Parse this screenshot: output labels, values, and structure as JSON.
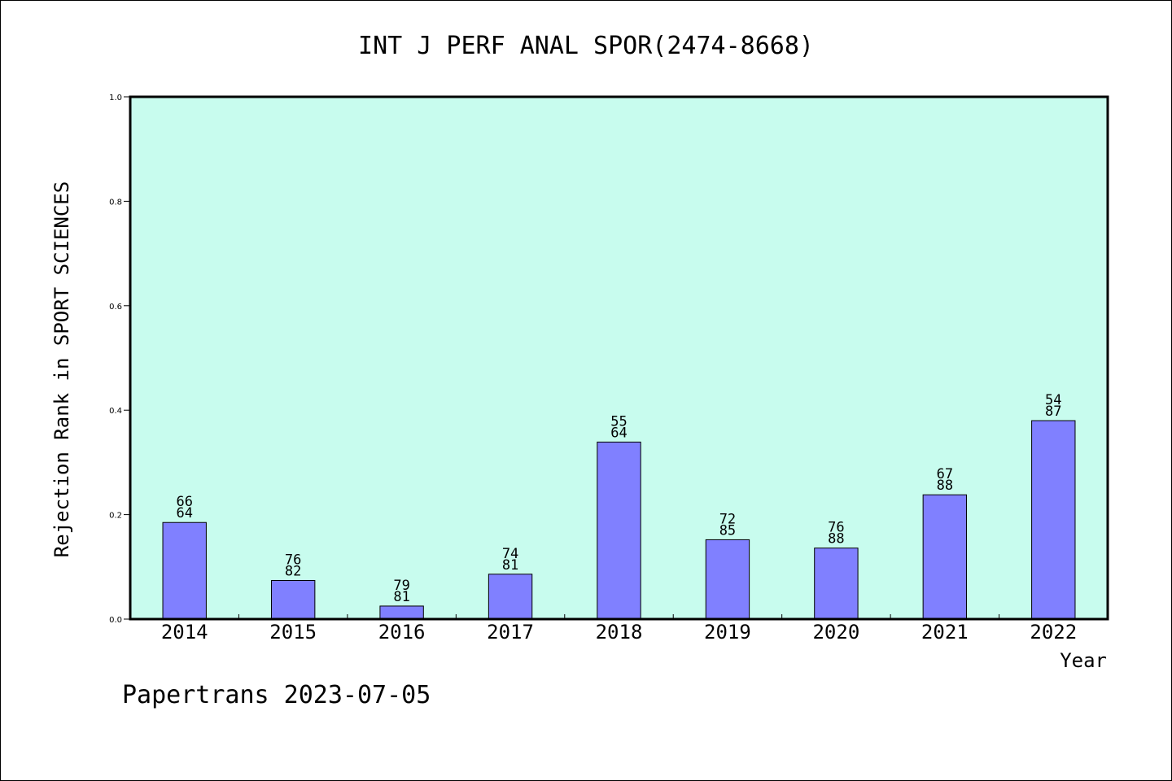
{
  "chart_data": {
    "type": "bar",
    "title": "INT J PERF ANAL SPOR(2474-8668)",
    "xlabel": "Year",
    "ylabel": "Rejection Rank in SPORT SCIENCES",
    "ylim": [
      0,
      1.0
    ],
    "yticks": [
      "0.0",
      "0.2",
      "0.4",
      "0.6",
      "0.8",
      "1.0"
    ],
    "grid": false,
    "categories": [
      "2014",
      "2015",
      "2016",
      "2017",
      "2018",
      "2019",
      "2020",
      "2021",
      "2022"
    ],
    "values": [
      0.185,
      0.074,
      0.025,
      0.086,
      0.339,
      0.152,
      0.136,
      0.238,
      0.38
    ],
    "label_top": [
      "66",
      "76",
      "79",
      "74",
      "55",
      "72",
      "76",
      "67",
      "54"
    ],
    "label_bottom": [
      "64",
      "82",
      "81",
      "81",
      "64",
      "85",
      "88",
      "88",
      "87"
    ],
    "colors": {
      "plot_background": "#c8fcee",
      "bar_fill": "#8080ff",
      "bar_stroke": "#000000"
    }
  },
  "footer": {
    "credit": "Papertrans 2023-07-05"
  }
}
